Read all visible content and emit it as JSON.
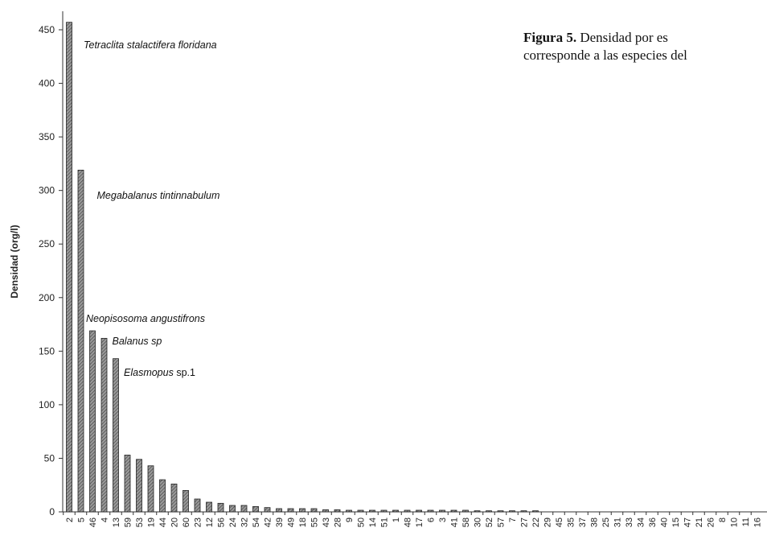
{
  "caption": {
    "label": "Figura 5.",
    "line1_rest": "Densidad por es",
    "line2": "corresponde a las especies del"
  },
  "chart_data": {
    "type": "bar",
    "ylabel": "Densidad (org/l)",
    "xlabel": "",
    "ylim": [
      0,
      470
    ],
    "yticks": [
      0,
      50,
      100,
      150,
      200,
      250,
      300,
      350,
      400,
      450
    ],
    "grid": false,
    "categories": [
      "2",
      "5",
      "46",
      "4",
      "13",
      "59",
      "53",
      "19",
      "44",
      "20",
      "60",
      "23",
      "12",
      "56",
      "24",
      "32",
      "54",
      "42",
      "39",
      "49",
      "18",
      "55",
      "43",
      "28",
      "9",
      "50",
      "14",
      "51",
      "1",
      "48",
      "17",
      "6",
      "3",
      "41",
      "58",
      "30",
      "52",
      "57",
      "7",
      "27",
      "22",
      "29",
      "45",
      "35",
      "37",
      "38",
      "25",
      "31",
      "33",
      "34",
      "36",
      "40",
      "15",
      "47",
      "21",
      "26",
      "8",
      "10",
      "11",
      "16"
    ],
    "values": [
      457,
      319,
      169,
      162,
      143,
      53,
      49,
      43,
      30,
      26,
      20,
      12,
      9,
      8,
      6,
      6,
      5,
      4,
      3,
      3,
      3,
      3,
      2,
      2,
      1.5,
      1.5,
      1.5,
      1.5,
      1.5,
      1.5,
      1.5,
      1.5,
      1.5,
      1.5,
      1.5,
      1,
      1,
      1,
      1,
      1,
      1,
      0,
      0,
      0,
      0,
      0,
      0,
      0,
      0,
      0,
      0,
      0,
      0,
      0,
      0,
      0,
      0,
      0,
      0,
      0
    ],
    "annotations": [
      {
        "text": "Tetraclita stalactifera floridana",
        "category": "2"
      },
      {
        "text": "Megabalanus tintinnabulum",
        "category": "5"
      },
      {
        "text": "Neopisosoma angustifrons",
        "category": "46"
      },
      {
        "text": "Balanus sp",
        "category": "4"
      },
      {
        "text": "Elasmopus",
        "suffix": " sp.1",
        "category": "13"
      }
    ]
  }
}
